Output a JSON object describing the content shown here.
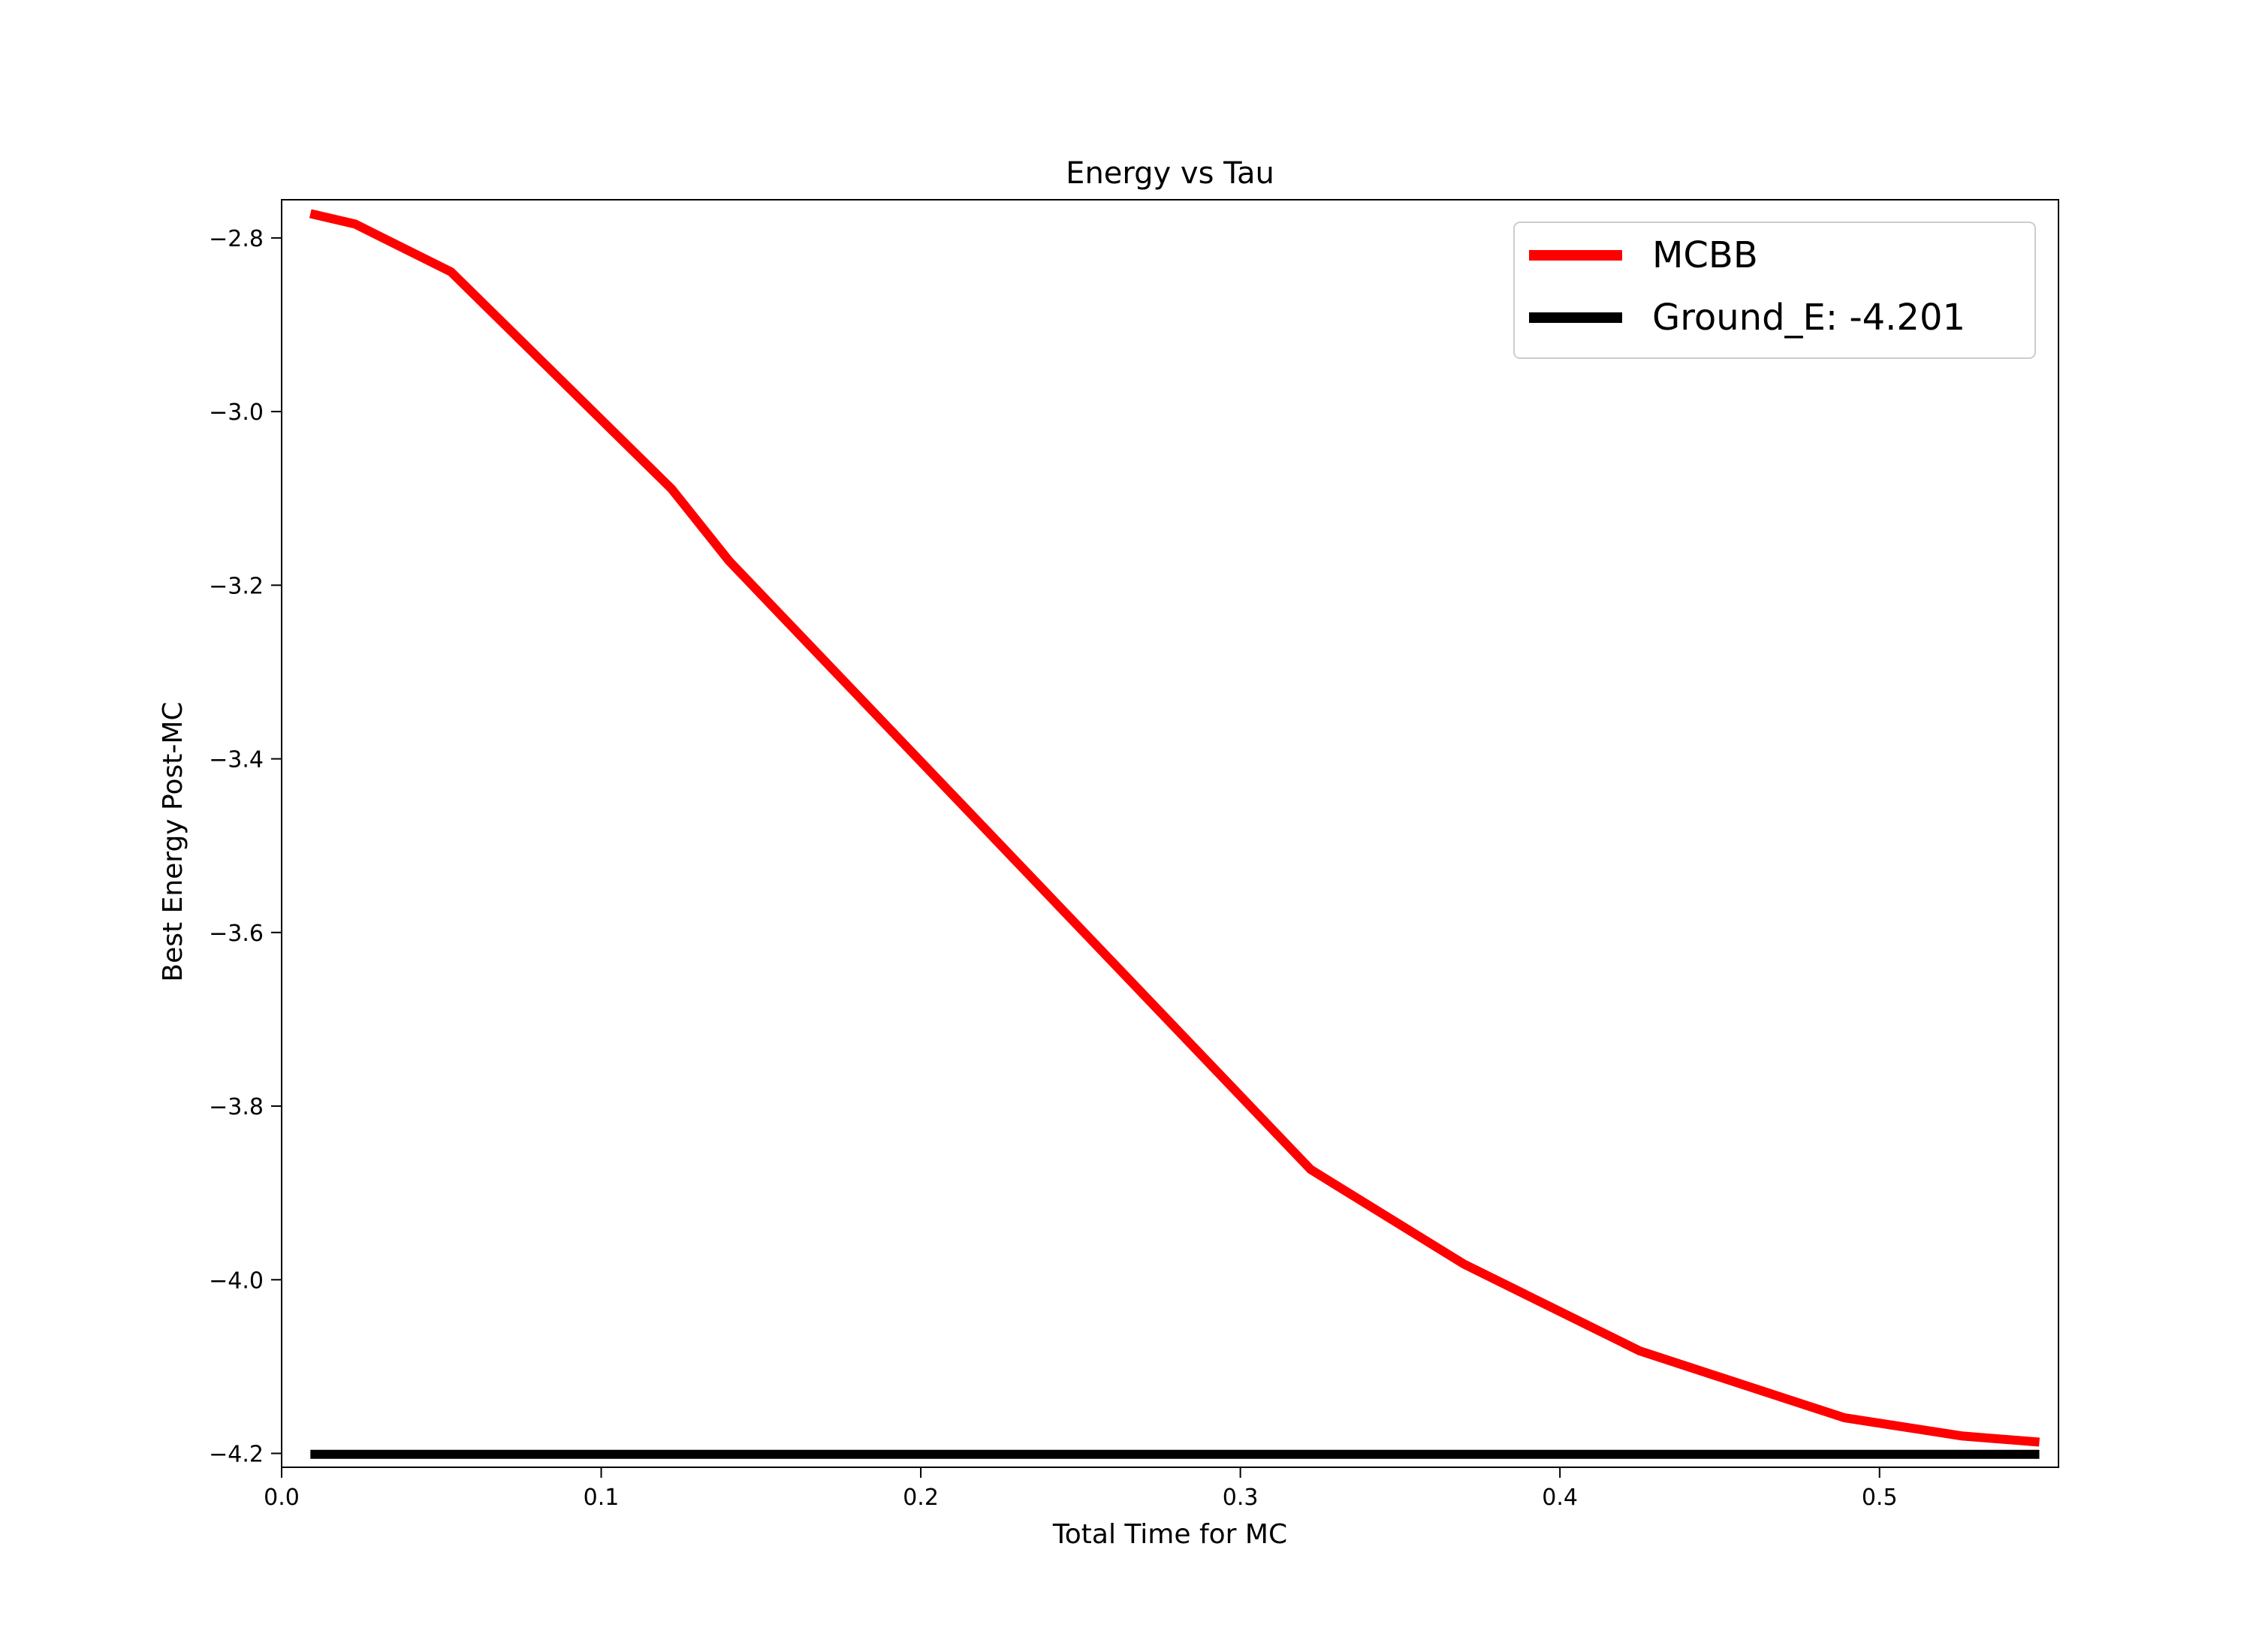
{
  "chart_data": {
    "type": "line",
    "title": "Energy vs Tau",
    "xlabel": "Total Time for MC",
    "ylabel": "Best Energy Post-MC",
    "xlim": [
      0.0,
      0.556
    ],
    "ylim": [
      -4.216,
      -2.756
    ],
    "xticks": [
      0.0,
      0.1,
      0.2,
      0.3,
      0.4,
      0.5
    ],
    "xtick_labels": [
      "0.0",
      "0.1",
      "0.2",
      "0.3",
      "0.4",
      "0.5"
    ],
    "yticks": [
      -2.8,
      -3.0,
      -3.2,
      -3.4,
      -3.6,
      -3.8,
      -4.0,
      -4.2
    ],
    "ytick_labels": [
      "−2.8",
      "−3.0",
      "−3.2",
      "−3.4",
      "−3.6",
      "−3.8",
      "−4.0",
      "−4.2"
    ],
    "grid": false,
    "legend_position": "upper right",
    "series": [
      {
        "name": "MCBB",
        "color": "#ff0000",
        "x": [
          0.009,
          0.023,
          0.053,
          0.122,
          0.14,
          0.322,
          0.37,
          0.425,
          0.489,
          0.526,
          0.55
        ],
        "y": [
          -2.772,
          -2.784,
          -2.839,
          -3.089,
          -3.172,
          -3.873,
          -3.982,
          -4.082,
          -4.159,
          -4.18,
          -4.187
        ]
      },
      {
        "name": "Ground_E: -4.201",
        "color": "#000000",
        "x": [
          0.009,
          0.55
        ],
        "y": [
          -4.201,
          -4.201
        ]
      }
    ]
  }
}
